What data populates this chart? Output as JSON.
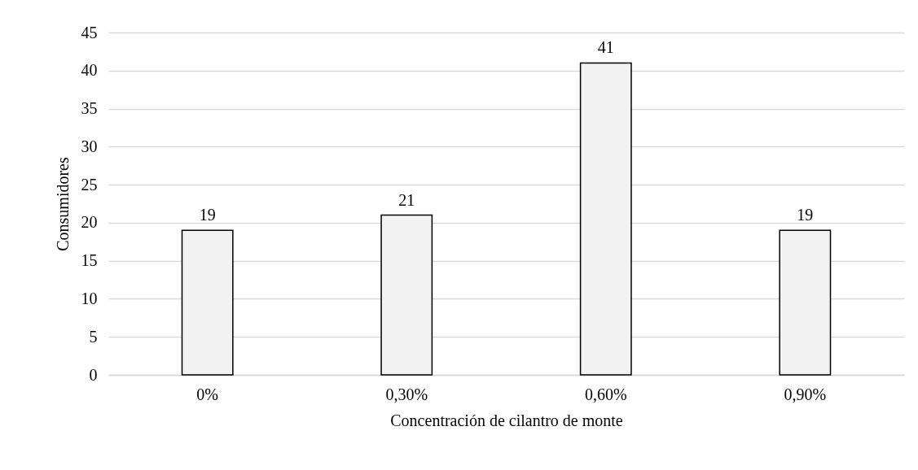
{
  "chart_data": {
    "type": "bar",
    "xlabel": "Concentración de cilantro de monte",
    "ylabel": "Consumidores",
    "categories": [
      "0%",
      "0,30%",
      "0,60%",
      "0,90%"
    ],
    "values": [
      19,
      21,
      41,
      19
    ],
    "color": "#f2f2f2",
    "ylim": [
      0,
      45
    ],
    "yticks": [
      0,
      5,
      10,
      15,
      20,
      25,
      30,
      35,
      40,
      45
    ],
    "grid": "y",
    "data_labels": true
  }
}
